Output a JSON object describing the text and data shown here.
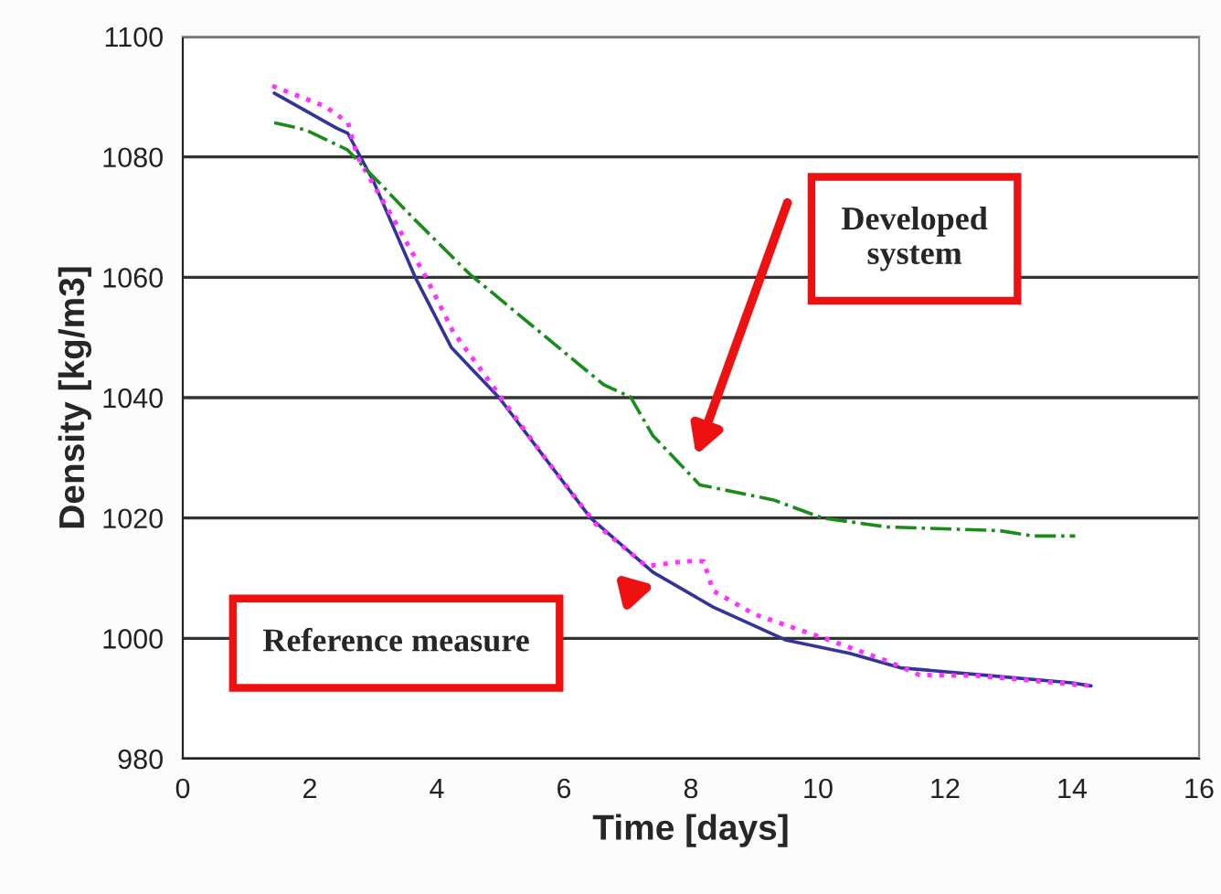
{
  "chart_data": {
    "type": "line",
    "xlabel": "Time [days]",
    "ylabel": "Density [kg/m3]",
    "xlim": [
      0,
      16
    ],
    "xticks": [
      0,
      2,
      4,
      6,
      8,
      10,
      12,
      14,
      16
    ],
    "ylim": [
      980,
      1100
    ],
    "yticks": [
      980,
      1000,
      1020,
      1040,
      1060,
      1080,
      1100
    ],
    "grid": "y",
    "legend": false,
    "series": [
      {
        "color": "#333399",
        "line_style": "solid",
        "x": [
          1.44,
          2.42,
          2.6,
          3.0,
          3.66,
          4.23,
          4.98,
          5.7,
          6.42,
          7.4,
          8.35,
          9.5,
          10.5,
          11.3,
          12.5,
          14.0,
          14.3
        ],
        "values": [
          1090.6,
          1084.8,
          1083.9,
          1076,
          1060,
          1048.3,
          1040,
          1030,
          1020,
          1011,
          1005.2,
          999.7,
          997.5,
          995.1,
          994,
          992.6,
          992.1
        ]
      },
      {
        "color": "#ff33ff",
        "line_style": "dotted",
        "x": [
          1.41,
          2.24,
          2.6,
          2.75,
          3.3,
          3.83,
          4.26,
          4.6,
          5.7,
          6.5,
          7.3,
          7.9,
          8.2,
          8.35,
          9.0,
          10.1,
          11.1,
          11.6,
          12.5,
          14.3
        ],
        "values": [
          1091.8,
          1088.4,
          1085.7,
          1080,
          1070,
          1060,
          1050.9,
          1046,
          1030,
          1019,
          1012,
          1012.8,
          1012.8,
          1007.9,
          1004,
          1000,
          996.2,
          993.9,
          993.8,
          992.1
        ]
      },
      {
        "color": "#1a8c1a",
        "line_style": "dashed",
        "x": [
          1.44,
          1.93,
          2.59,
          3.65,
          4.52,
          6.62,
          7.05,
          7.4,
          8.14,
          9.3,
          10.07,
          11.1,
          12.86,
          13.4,
          14.05
        ],
        "values": [
          1085.7,
          1084.5,
          1081.2,
          1069.6,
          1060.5,
          1042.2,
          1040.1,
          1033.7,
          1025.5,
          1023,
          1020,
          1018.5,
          1017.9,
          1017,
          1017
        ]
      }
    ],
    "annotations": [
      "Developed\nsystem",
      "Reference measure"
    ]
  }
}
